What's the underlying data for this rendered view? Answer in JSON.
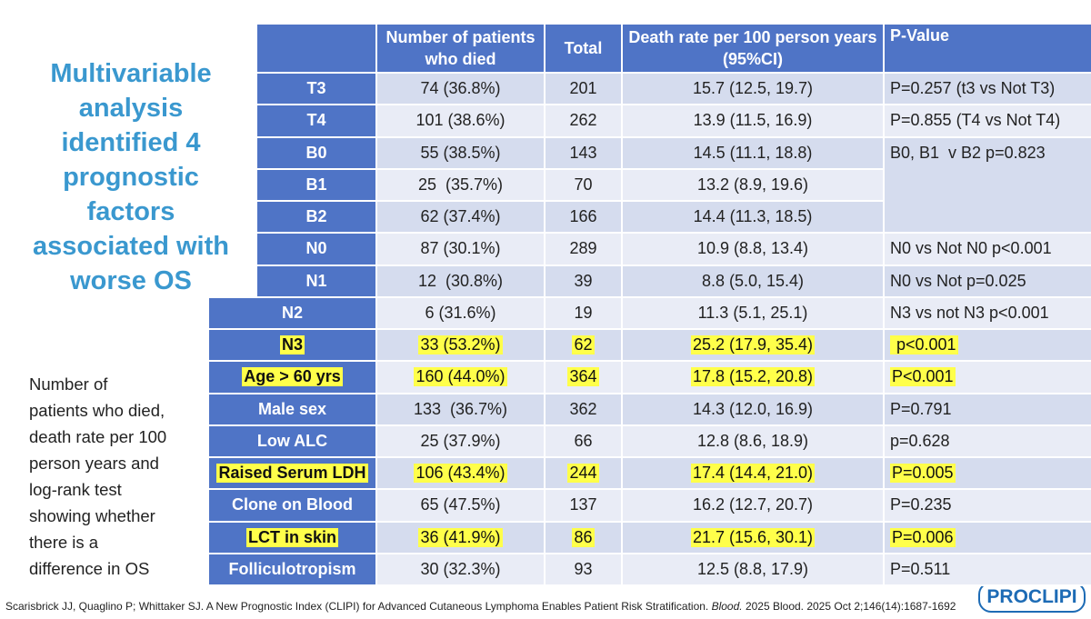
{
  "title_lines": [
    "Multivariable",
    "analysis",
    "identified 4",
    "prognostic",
    "factors",
    "associated with",
    "worse OS"
  ],
  "side_note_lines": [
    "Number of",
    "patients who died,",
    "death rate per 100",
    "person years and",
    "log-rank test",
    "showing whether",
    "there is a",
    "difference in OS"
  ],
  "table": {
    "header": [
      "Number of patients who died",
      "Total",
      "Death rate per 100 person years (95%CI)",
      "P-Value"
    ],
    "rows": [
      {
        "cells": [
          "T3",
          "74 (36.8%)",
          "201",
          "15.7 (12.5, 19.7)",
          "P=0.257 (t3 vs Not T3)"
        ],
        "highlight": false
      },
      {
        "cells": [
          "T4",
          "101 (38.6%)",
          "262",
          "13.9 (11.5, 16.9)",
          "P=0.855 (T4 vs Not T4)"
        ],
        "highlight": false
      },
      {
        "cells": [
          "B0",
          "55 (38.5%)",
          "143",
          "14.5 (11.1, 18.8)",
          "B0, B1  v B2 p=0.823"
        ],
        "highlight": false
      },
      {
        "cells": [
          "B1",
          "25  (35.7%)",
          "70",
          "13.2 (8.9, 19.6)",
          null
        ],
        "highlight": false
      },
      {
        "cells": [
          "B2",
          "62 (37.4%)",
          "166",
          "14.4 (11.3, 18.5)",
          null
        ],
        "highlight": false
      },
      {
        "cells": [
          "N0",
          "87 (30.1%)",
          "289",
          "10.9 (8.8, 13.4)",
          "N0 vs Not N0 p<0.001"
        ],
        "highlight": false
      },
      {
        "cells": [
          "N1",
          "12  (30.8%)",
          "39",
          "8.8 (5.0, 15.4)",
          "N0 vs Not p=0.025"
        ],
        "highlight": false
      },
      {
        "cells": [
          "N2",
          "6 (31.6%)",
          "19",
          "11.3 (5.1, 25.1)",
          "N3 vs not N3 p<0.001"
        ],
        "highlight": false
      },
      {
        "cells": [
          "N3",
          "33 (53.2%)",
          "62",
          "25.2 (17.9, 35.4)",
          " p<0.001"
        ],
        "highlight": true
      },
      {
        "cells": [
          "Age > 60 yrs",
          "160 (44.0%)",
          "364",
          "17.8 (15.2, 20.8)",
          "P<0.001"
        ],
        "highlight": true
      },
      {
        "cells": [
          "Male sex",
          "133  (36.7%)",
          "362",
          "14.3 (12.0, 16.9)",
          "P=0.791"
        ],
        "highlight": false
      },
      {
        "cells": [
          "Low ALC",
          "25 (37.9%)",
          "66",
          "12.8 (8.6, 18.9)",
          "p=0.628"
        ],
        "highlight": false
      },
      {
        "cells": [
          "Raised Serum LDH",
          "106 (43.4%)",
          "244",
          "17.4 (14.4, 21.0)",
          "P=0.005"
        ],
        "highlight": true
      },
      {
        "cells": [
          "Clone on Blood",
          "65 (47.5%)",
          "137",
          "16.2 (12.7, 20.7)",
          "P=0.235"
        ],
        "highlight": false
      },
      {
        "cells": [
          "LCT in skin",
          "36 (41.9%)",
          "86",
          "21.7 (15.6, 30.1)",
          "P=0.006"
        ],
        "highlight": true
      },
      {
        "cells": [
          "Folliculotropism",
          "30 (32.3%)",
          "93",
          "12.5 (8.8, 17.9)",
          "P=0.511"
        ],
        "highlight": false
      }
    ]
  },
  "footnote": [
    "Scarisbrick JJ, Quaglino P; Whittaker SJ. A New Prognostic Index (CLIPI) for Advanced Cutaneous Lymphoma Enables Patient Risk Stratification. ",
    "Blood.",
    " 2025 Blood. 2025 Oct 2;146(14):1687-1692"
  ],
  "logo": "PROCLIPI"
}
